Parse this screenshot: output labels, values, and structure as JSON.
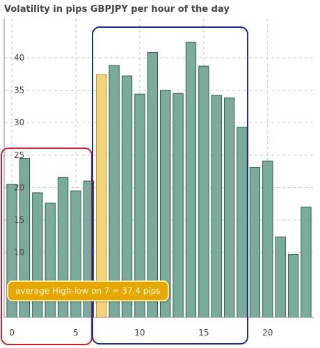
{
  "chart_data": {
    "type": "bar",
    "title": "Volatility in pips GBPJPY per hour of the day",
    "x": [
      0,
      1,
      2,
      3,
      4,
      5,
      6,
      7,
      8,
      9,
      10,
      11,
      12,
      13,
      14,
      15,
      16,
      17,
      18,
      19,
      20,
      21,
      22,
      23
    ],
    "values": [
      20.5,
      24.5,
      19.2,
      17.6,
      21.6,
      19.5,
      21.0,
      37.4,
      38.8,
      37.2,
      34.4,
      40.8,
      35.0,
      34.5,
      42.4,
      38.7,
      34.2,
      33.8,
      29.3,
      23.1,
      24.1,
      12.4,
      9.7,
      17.0
    ],
    "highlight_index": 7,
    "xlim": [
      -0.6,
      23.6
    ],
    "ylim": [
      0,
      46
    ],
    "xticks": [
      0,
      5,
      10,
      15,
      20
    ],
    "yticks": [
      10,
      15,
      20,
      25,
      30,
      35,
      40
    ],
    "grid": true,
    "tooltip": "average High-low on 7 = 37.4 pips"
  },
  "colors": {
    "bar": "#7aab9b",
    "bar_edge": "#2e5f52",
    "highlight": "#f3d37a",
    "highlight_edge": "#b98f1a",
    "grid": "#c8c8c8",
    "axis": "#888888",
    "red_box": "#cc1e2a",
    "blue_box": "#1f2a9b",
    "tooltip_bg": "#e6a800"
  }
}
